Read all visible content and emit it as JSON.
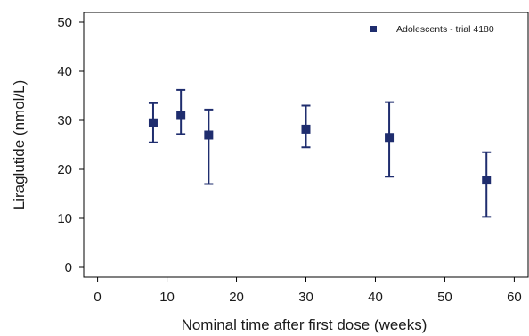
{
  "chart_data": {
    "type": "scatter",
    "title": "",
    "xlabel": "Nominal time after first dose (weeks)",
    "ylabel": "Liraglutide (nmol/L)",
    "xlim": [
      -2,
      62
    ],
    "ylim": [
      -2,
      52
    ],
    "xticks": [
      0,
      10,
      20,
      30,
      40,
      50,
      60
    ],
    "yticks": [
      0,
      10,
      20,
      30,
      40,
      50
    ],
    "grid": false,
    "legend_position": "top-right",
    "series": [
      {
        "name": "Adolescents - trial 4180",
        "marker": "square",
        "color": "#1f2d6e",
        "points": [
          {
            "x": 8,
            "y": 29.5,
            "lower": 25.5,
            "upper": 33.5
          },
          {
            "x": 12,
            "y": 31.0,
            "lower": 27.2,
            "upper": 36.2
          },
          {
            "x": 16,
            "y": 27.0,
            "lower": 17.0,
            "upper": 32.2
          },
          {
            "x": 30,
            "y": 28.2,
            "lower": 24.5,
            "upper": 33.0
          },
          {
            "x": 42,
            "y": 26.5,
            "lower": 18.5,
            "upper": 33.7
          },
          {
            "x": 56,
            "y": 17.8,
            "lower": 10.3,
            "upper": 23.5
          }
        ]
      }
    ]
  }
}
